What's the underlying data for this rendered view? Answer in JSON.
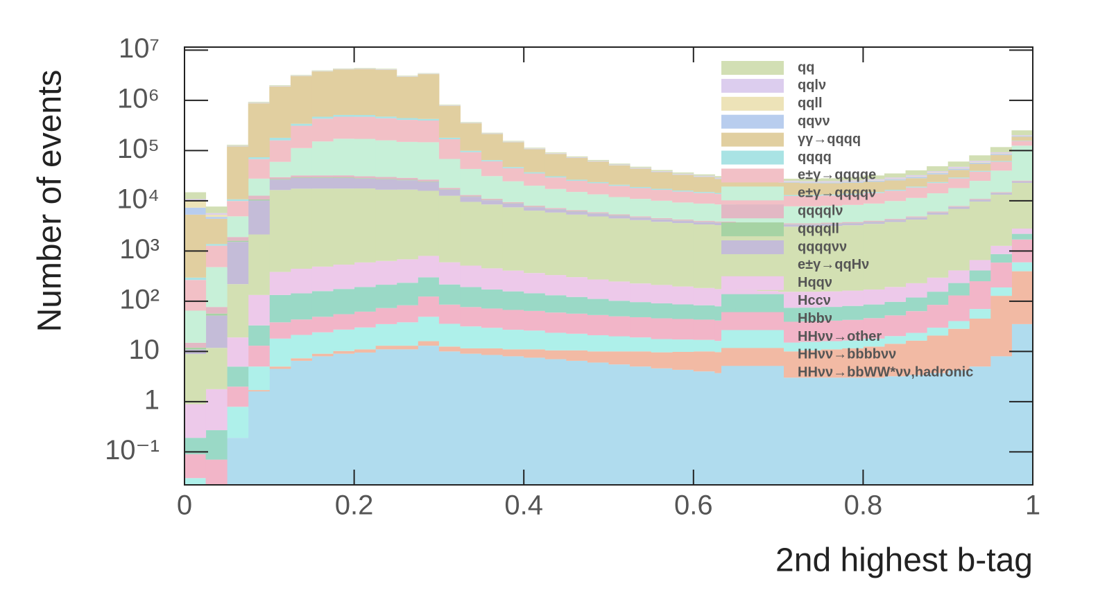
{
  "chart_data": {
    "type": "stacked-histogram",
    "x_label": "2nd highest b-tag",
    "y_label": "Number of events",
    "log_y": true,
    "legend_position": "upper-right",
    "bins": [
      0,
      0.025,
      0.05,
      0.075,
      0.1,
      0.125,
      0.15,
      0.175,
      0.2,
      0.225,
      0.25,
      0.275,
      0.3,
      0.325,
      0.35,
      0.375,
      0.4,
      0.425,
      0.45,
      0.475,
      0.5,
      0.525,
      0.55,
      0.575,
      0.6,
      0.625,
      0.65,
      0.675,
      0.7,
      0.725,
      0.75,
      0.775,
      0.8,
      0.825,
      0.85,
      0.875,
      0.9,
      0.925,
      0.95,
      0.975,
      1
    ],
    "xlim": [
      0,
      1
    ],
    "xticks": [
      0,
      0.2,
      0.4,
      0.6,
      0.8,
      1
    ],
    "ylim": [
      0.022,
      11500000
    ],
    "yticks": [
      {
        "value": 0.1,
        "label": "10⁻¹"
      },
      1,
      10,
      {
        "value": 100,
        "label": "10²"
      },
      {
        "value": 1000,
        "label": "10³"
      },
      {
        "value": 10000,
        "label": "10⁴"
      },
      {
        "value": 100000,
        "label": "10⁵"
      },
      {
        "value": 1000000,
        "label": "10⁶"
      },
      {
        "value": 10000000,
        "label": "10⁷"
      }
    ],
    "series": [
      {
        "name": "qq",
        "color": "#d2dfb4",
        "values": [
          4000,
          2000,
          5000,
          30000,
          60000,
          80000,
          90000,
          100000,
          100000,
          100000,
          80000,
          80000,
          20000,
          10000,
          6000,
          4500,
          3500,
          3000,
          2600,
          2300,
          2100,
          2000,
          1900,
          1900,
          1900,
          2000,
          2100,
          2300,
          2600,
          3000,
          3500,
          4200,
          5000,
          6000,
          8000,
          10000,
          13000,
          18000,
          25000,
          50000
        ]
      },
      {
        "name": "qqlν",
        "color": "#dccdee",
        "values": [
          500,
          400,
          2000,
          15000,
          30000,
          40000,
          50000,
          50000,
          50000,
          50000,
          40000,
          40000,
          10000,
          5000,
          3000,
          2200,
          1700,
          1400,
          1200,
          1000,
          900,
          850,
          800,
          780,
          760,
          750,
          760,
          800,
          850,
          900,
          1000,
          1100,
          1300,
          1500,
          1800,
          2200,
          2800,
          3500,
          4500,
          6000
        ]
      },
      {
        "name": "qqll",
        "color": "#ede3b8",
        "values": [
          3000,
          500,
          1000,
          5000,
          10000,
          15000,
          18000,
          20000,
          20000,
          20000,
          15000,
          15000,
          4000,
          2000,
          1200,
          900,
          700,
          550,
          450,
          380,
          330,
          300,
          280,
          260,
          250,
          240,
          240,
          250,
          270,
          300,
          330,
          380,
          450,
          550,
          700,
          900,
          1100,
          1400,
          1800,
          2500
        ]
      },
      {
        "name": "qqνν",
        "color": "#b8cdee",
        "values": [
          2000,
          400,
          1500,
          8000,
          15000,
          20000,
          25000,
          25000,
          25000,
          25000,
          20000,
          20000,
          6000,
          3000,
          2000,
          1500,
          1200,
          1000,
          900,
          800,
          750,
          700,
          680,
          660,
          650,
          650,
          660,
          700,
          750,
          800,
          900,
          1000,
          1200,
          1400,
          1700,
          2000,
          2500,
          3000,
          4000,
          6000
        ]
      },
      {
        "name": "γγ→qqqq",
        "color": "#e1cfa0",
        "values": [
          5000,
          3000,
          110000,
          800000,
          1700000,
          2700000,
          3300000,
          3600000,
          3700000,
          3600000,
          2500000,
          2900000,
          600000,
          250000,
          150000,
          100000,
          70000,
          55000,
          45000,
          37000,
          30000,
          25000,
          20000,
          17000,
          15000,
          13000,
          12000,
          11000,
          10000,
          9500,
          9000,
          9000,
          9000,
          9000,
          9000,
          10000,
          12000,
          15000,
          20000,
          30000
        ]
      },
      {
        "name": "qqqq",
        "color": "#a9e3e4",
        "values": [
          30,
          100,
          800,
          6000,
          20000,
          30000,
          40000,
          40000,
          40000,
          35000,
          35000,
          30000,
          12000,
          6000,
          3500,
          2500,
          2000,
          1600,
          1300,
          1100,
          1000,
          900,
          800,
          750,
          700,
          650,
          600,
          580,
          560,
          560,
          580,
          600,
          650,
          700,
          800,
          1000,
          1200,
          1500,
          2200,
          3000
        ]
      },
      {
        "name": "e±γ→qqqqe",
        "color": "#f2c0c6",
        "values": [
          200,
          800,
          5000,
          40000,
          100000,
          200000,
          280000,
          300000,
          300000,
          280000,
          260000,
          250000,
          100000,
          50000,
          30000,
          20000,
          15000,
          12000,
          10000,
          9000,
          8000,
          7000,
          6500,
          6000,
          5500,
          5200,
          5000,
          4800,
          4700,
          4700,
          4800,
          5000,
          5500,
          6000,
          7000,
          8500,
          10000,
          13000,
          20000,
          30000
        ]
      },
      {
        "name": "e±γ→qqqqν",
        "color": "#c7f0d8",
        "values": [
          50,
          400,
          3000,
          15000,
          30000,
          80000,
          120000,
          140000,
          140000,
          130000,
          120000,
          120000,
          50000,
          30000,
          20000,
          15000,
          12000,
          10000,
          8500,
          7500,
          6500,
          6000,
          5500,
          5000,
          4800,
          4600,
          4400,
          4300,
          4200,
          4200,
          4300,
          4500,
          4800,
          5500,
          6500,
          8000,
          10000,
          14000,
          25000,
          100000
        ]
      },
      {
        "name": "qqqqlν",
        "color": "#e2b8c4",
        "values": [
          3,
          20,
          300,
          2000,
          2500,
          2800,
          2800,
          2800,
          2600,
          2500,
          2400,
          2200,
          1200,
          800,
          600,
          500,
          420,
          360,
          320,
          280,
          250,
          230,
          210,
          200,
          190,
          180,
          170,
          165,
          160,
          160,
          165,
          170,
          180,
          200,
          220,
          260,
          320,
          400,
          500,
          800
        ]
      },
      {
        "name": "qqqqll",
        "color": "#a6d3a4",
        "values": [
          1,
          5,
          80,
          500,
          700,
          800,
          800,
          800,
          700,
          700,
          600,
          500,
          300,
          200,
          150,
          120,
          100,
          90,
          80,
          70,
          60,
          55,
          50,
          45,
          42,
          40,
          38,
          36,
          35,
          35,
          35,
          36,
          38,
          40,
          45,
          50,
          60,
          80,
          100,
          150
        ]
      },
      {
        "name": "qqqqνν",
        "color": "#c4bcd8",
        "values": [
          2,
          40,
          1300,
          8000,
          10000,
          11000,
          11000,
          11000,
          10000,
          10000,
          9000,
          8000,
          4000,
          2500,
          1800,
          1400,
          1100,
          900,
          800,
          700,
          600,
          500,
          450,
          400,
          380,
          360,
          340,
          320,
          310,
          300,
          300,
          300,
          320,
          350,
          400,
          500,
          600,
          800,
          1000,
          1500
        ]
      },
      {
        "name": "e±γ→qqHν",
        "color": "#d3e0b3",
        "values": [
          8,
          10,
          200,
          2000,
          16000,
          17000,
          17000,
          17000,
          17000,
          16000,
          16000,
          15000,
          12000,
          9000,
          8000,
          7000,
          6000,
          5500,
          5000,
          4600,
          4200,
          3900,
          3600,
          3400,
          3200,
          3100,
          3000,
          2900,
          2900,
          2900,
          3000,
          3100,
          3300,
          3600,
          4000,
          5000,
          6500,
          9000,
          12000,
          20000
        ]
      },
      {
        "name": "Hqqν",
        "color": "#edc9ea",
        "values": [
          0.7,
          1.5,
          14,
          100,
          250,
          300,
          330,
          360,
          400,
          420,
          450,
          500,
          380,
          320,
          280,
          250,
          220,
          200,
          180,
          160,
          145,
          130,
          120,
          110,
          100,
          95,
          90,
          85,
          80,
          80,
          80,
          82,
          85,
          95,
          110,
          140,
          180,
          250,
          400,
          600
        ]
      },
      {
        "name": "Hccν",
        "color": "#9ad9c6",
        "values": [
          0.1,
          0.2,
          3,
          20,
          95,
          100,
          110,
          120,
          130,
          140,
          150,
          175,
          130,
          115,
          100,
          90,
          80,
          72,
          65,
          58,
          52,
          48,
          45,
          42,
          40,
          38,
          36,
          35,
          35,
          35,
          36,
          38,
          40,
          45,
          55,
          70,
          100,
          160,
          280,
          500
        ]
      },
      {
        "name": "Hbbν",
        "color": "#f2b5c8",
        "values": [
          0.06,
          0.05,
          1.2,
          8,
          20,
          22,
          25,
          28,
          32,
          38,
          45,
          75,
          50,
          45,
          42,
          40,
          38,
          36,
          34,
          32,
          30,
          29,
          28,
          27,
          26,
          25,
          24,
          24,
          24,
          24,
          25,
          26,
          28,
          32,
          40,
          55,
          90,
          180,
          400,
          1100
        ]
      },
      {
        "name": "HHνν→other",
        "color": "#aef0ea",
        "values": [
          0.03,
          0.02,
          0.6,
          3.3,
          13,
          14,
          15,
          17,
          19,
          22,
          25,
          33,
          23,
          20,
          18,
          16,
          15,
          13,
          12,
          11,
          10,
          9,
          8,
          7.5,
          7,
          6.5,
          6,
          5.5,
          5,
          5,
          5,
          5,
          5.5,
          6,
          7,
          9,
          12,
          25,
          60,
          200
        ]
      },
      {
        "name": "HHνν→bbbbνν",
        "color": "#f2baa4",
        "values": [
          0,
          0,
          0,
          0.1,
          0.5,
          0.8,
          1,
          1.2,
          1.5,
          2,
          2,
          3,
          2.5,
          2.5,
          3,
          3,
          3.5,
          3.5,
          4,
          4,
          4.5,
          5,
          5,
          5.5,
          6,
          6,
          6.5,
          7,
          7,
          7.5,
          8,
          8.5,
          9.5,
          11,
          13,
          17,
          24,
          40,
          120,
          360
        ]
      },
      {
        "name": "HHνν→bbWW*νν,hadronic",
        "color": "#b0dcee",
        "values": [
          0,
          0,
          0.19,
          1.6,
          4.5,
          6.5,
          8,
          9,
          9.5,
          11,
          11,
          13,
          10,
          9,
          8.5,
          8,
          7.5,
          7,
          6.5,
          6,
          5.5,
          5,
          4.6,
          4.3,
          4,
          3.7,
          3.5,
          3.2,
          3,
          3,
          3,
          3,
          3,
          3.2,
          3.4,
          3.7,
          4.2,
          5,
          8,
          35
        ]
      }
    ]
  }
}
